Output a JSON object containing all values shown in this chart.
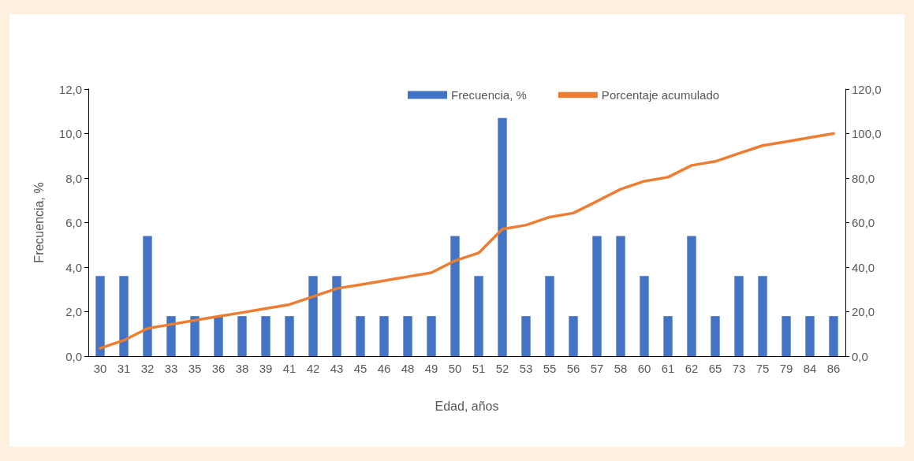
{
  "chart_data": {
    "type": "bar",
    "xlabel": "Edad, años",
    "ylabel": "Frecuencia, %",
    "categories": [
      "30",
      "31",
      "32",
      "33",
      "35",
      "36",
      "38",
      "39",
      "41",
      "42",
      "43",
      "45",
      "46",
      "48",
      "49",
      "50",
      "51",
      "52",
      "53",
      "55",
      "56",
      "57",
      "58",
      "60",
      "61",
      "62",
      "65",
      "73",
      "75",
      "79",
      "84",
      "86"
    ],
    "series": [
      {
        "name": "Frecuencia, %",
        "color": "#4472c4",
        "values": [
          3.6,
          3.6,
          5.4,
          1.8,
          1.8,
          1.8,
          1.8,
          1.8,
          1.8,
          3.6,
          3.6,
          1.8,
          1.8,
          1.8,
          1.8,
          5.4,
          3.6,
          10.7,
          1.8,
          3.6,
          1.8,
          5.4,
          5.4,
          3.6,
          1.8,
          5.4,
          1.8,
          3.6,
          3.6,
          1.8,
          1.8,
          1.8
        ]
      },
      {
        "name": "Porcentaje acumulado",
        "type": "line",
        "axis": "y2",
        "color": "#ed7d31",
        "values": [
          3.6,
          7.1,
          12.5,
          14.3,
          16.1,
          17.9,
          19.6,
          21.4,
          23.2,
          26.8,
          30.4,
          32.1,
          33.9,
          35.7,
          37.5,
          42.9,
          46.4,
          57.1,
          58.9,
          62.5,
          64.3,
          69.6,
          75.0,
          78.6,
          80.4,
          85.7,
          87.5,
          91.1,
          94.6,
          96.4,
          98.2,
          100.0
        ]
      }
    ],
    "ylim": [
      0,
      12
    ],
    "yticks": [
      {
        "value": 0,
        "label": "0,0"
      },
      {
        "value": 2,
        "label": "2,0"
      },
      {
        "value": 4,
        "label": "4,0"
      },
      {
        "value": 6,
        "label": "6,0"
      },
      {
        "value": 8,
        "label": "8,0"
      },
      {
        "value": 10,
        "label": "10,0"
      },
      {
        "value": 12,
        "label": "12,0"
      }
    ],
    "y2lim": [
      0,
      120
    ],
    "y2ticks": [
      {
        "value": 0,
        "label": "0,0"
      },
      {
        "value": 20,
        "label": "20,0"
      },
      {
        "value": 40,
        "label": "40,0"
      },
      {
        "value": 60,
        "label": "60,0"
      },
      {
        "value": 80,
        "label": "80,0"
      },
      {
        "value": 100,
        "label": "100,0"
      },
      {
        "value": 120,
        "label": "120,0"
      }
    ],
    "grid": false,
    "legend": "top",
    "marker": "none",
    "line_style": "solid"
  }
}
